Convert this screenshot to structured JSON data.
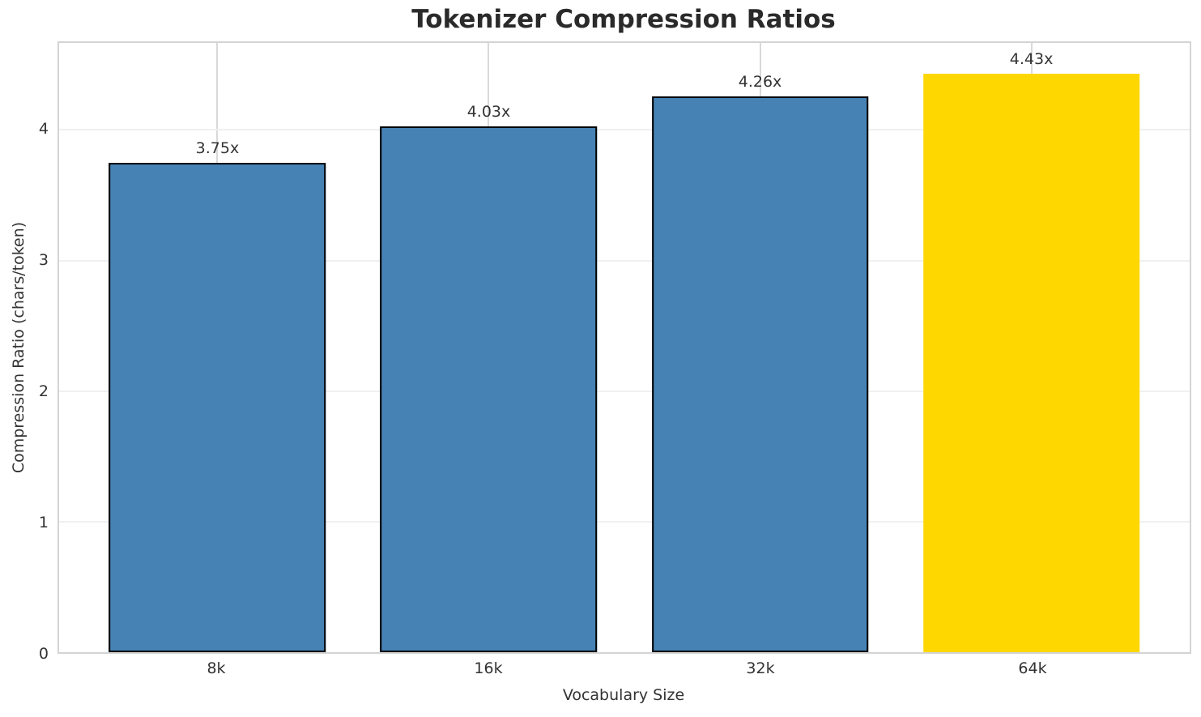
{
  "chart_data": {
    "type": "bar",
    "title": "Tokenizer Compression Ratios",
    "xlabel": "Vocabulary Size",
    "ylabel": "Compression Ratio (chars/token)",
    "categories": [
      "8k",
      "16k",
      "32k",
      "64k"
    ],
    "values": [
      3.75,
      4.03,
      4.26,
      4.43
    ],
    "bar_labels": [
      "3.75x",
      "4.03x",
      "4.26x",
      "4.43x"
    ],
    "bar_colors": [
      "#4682b4",
      "#4682b4",
      "#4682b4",
      "#ffd700"
    ],
    "bar_edge_colors": [
      "#000000",
      "#000000",
      "#000000",
      "none"
    ],
    "highlight_index": 3,
    "yticks": [
      0,
      1,
      2,
      3,
      4
    ],
    "ylim": [
      0,
      4.667
    ],
    "grid": "horizontal+vertical",
    "legend": "none",
    "colors": {
      "default_bar": "#4682b4",
      "highlight_bar": "#ffd700",
      "bar_edge": "#000000",
      "grid_horizontal": "#f0f0f0",
      "grid_vertical": "#d9d9d9",
      "spine": "#d4d4d4",
      "title_text": "#2a2a2a",
      "label_text": "#333333",
      "background": "#ffffff"
    }
  }
}
